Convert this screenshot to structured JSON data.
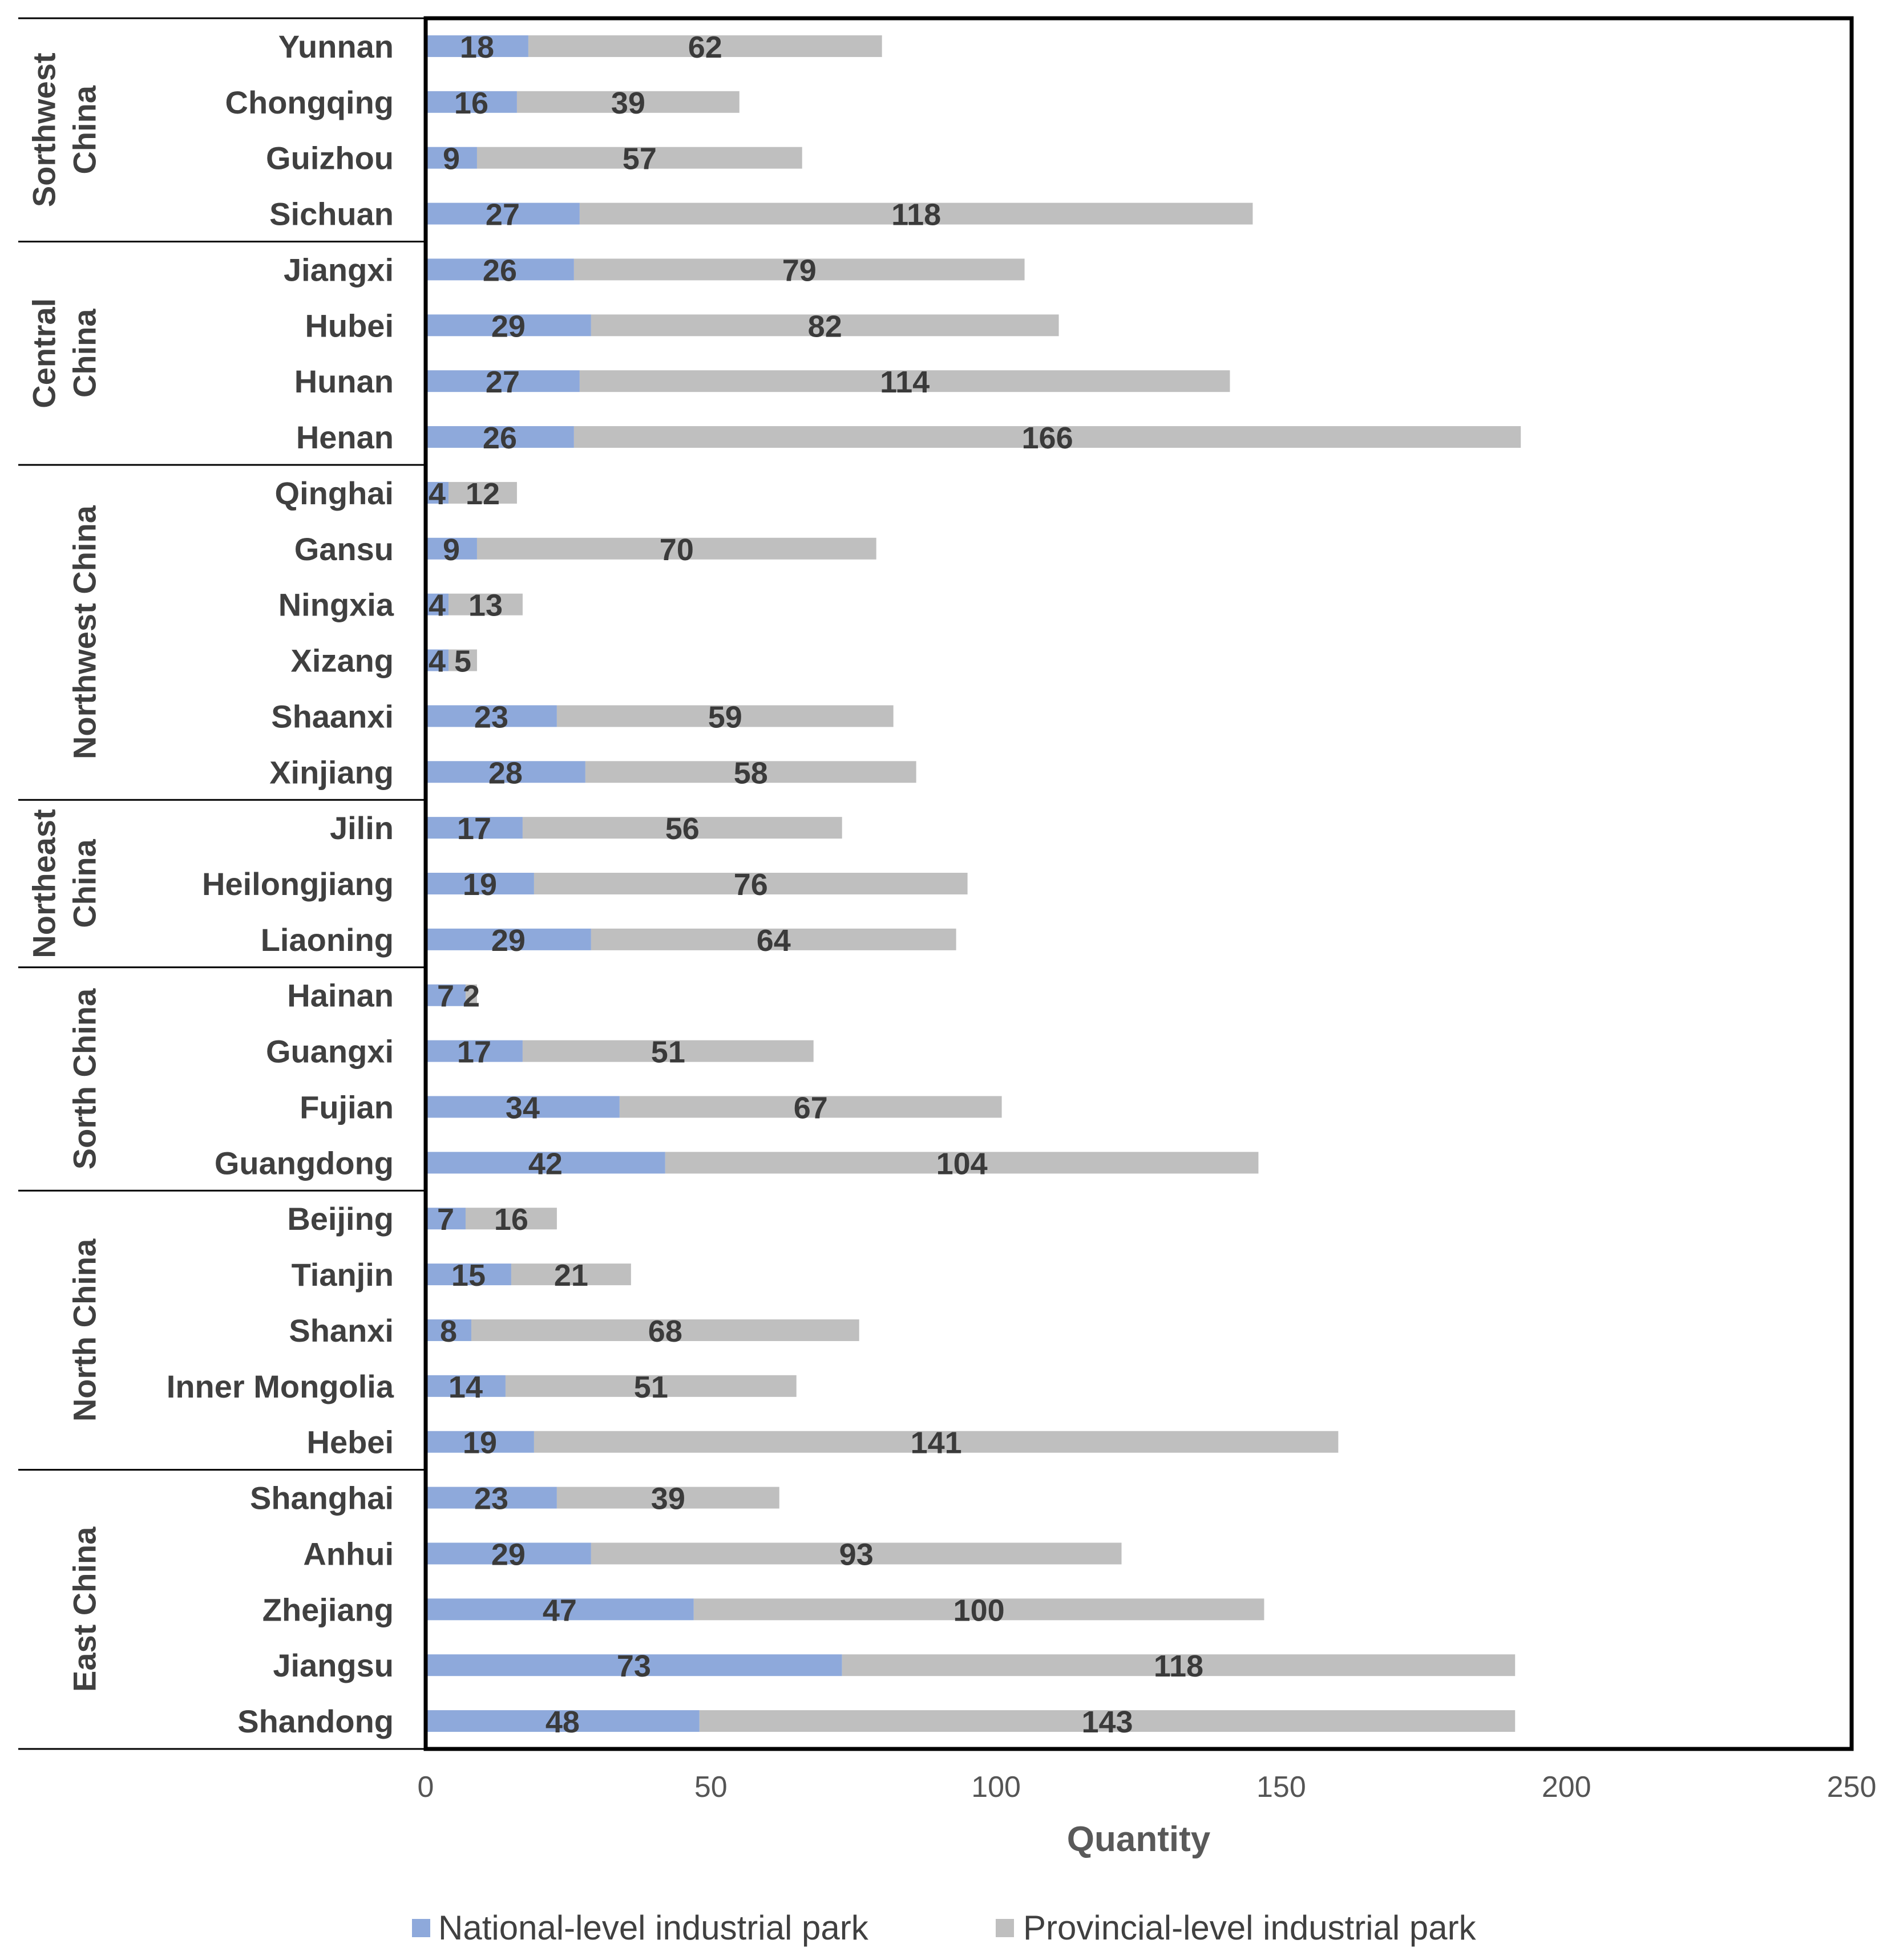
{
  "chart_data": {
    "type": "bar",
    "orientation": "horizontal",
    "stacked": true,
    "xlabel": "Quantity",
    "xlim": [
      0,
      250
    ],
    "xticks": [
      0,
      50,
      100,
      150,
      200,
      250
    ],
    "grid": false,
    "legend_position": "bottom",
    "series": [
      {
        "name": "National-level industrial park",
        "color": "#8EA9DB"
      },
      {
        "name": "Provincial-level industrial park",
        "color": "#BFBFBF"
      }
    ],
    "groups": [
      {
        "region": "Sorthwest China",
        "region_lines": [
          "Sorthwest",
          "China"
        ],
        "rows": [
          {
            "category": "Yunnan",
            "values": [
              18,
              62
            ]
          },
          {
            "category": "Chongqing",
            "values": [
              16,
              39
            ]
          },
          {
            "category": "Guizhou",
            "values": [
              9,
              57
            ]
          },
          {
            "category": "Sichuan",
            "values": [
              27,
              118
            ]
          }
        ]
      },
      {
        "region": "Central China",
        "region_lines": [
          "Central",
          "China"
        ],
        "rows": [
          {
            "category": "Jiangxi",
            "values": [
              26,
              79
            ]
          },
          {
            "category": "Hubei",
            "values": [
              29,
              82
            ]
          },
          {
            "category": "Hunan",
            "values": [
              27,
              114
            ]
          },
          {
            "category": "Henan",
            "values": [
              26,
              166
            ]
          }
        ]
      },
      {
        "region": "Northwest China",
        "region_lines": [
          "Northwest China"
        ],
        "rows": [
          {
            "category": "Qinghai",
            "values": [
              4,
              12
            ]
          },
          {
            "category": "Gansu",
            "values": [
              9,
              70
            ]
          },
          {
            "category": "Ningxia",
            "values": [
              4,
              13
            ]
          },
          {
            "category": "Xizang",
            "values": [
              4,
              5
            ]
          },
          {
            "category": "Shaanxi",
            "values": [
              23,
              59
            ]
          },
          {
            "category": "Xinjiang",
            "values": [
              28,
              58
            ]
          }
        ]
      },
      {
        "region": "Northeast China",
        "region_lines": [
          "Northeast",
          "China"
        ],
        "rows": [
          {
            "category": "Jilin",
            "values": [
              17,
              56
            ]
          },
          {
            "category": "Heilongjiang",
            "values": [
              19,
              76
            ]
          },
          {
            "category": "Liaoning",
            "values": [
              29,
              64
            ]
          }
        ]
      },
      {
        "region": "Sorth China",
        "region_lines": [
          "Sorth China"
        ],
        "rows": [
          {
            "category": "Hainan",
            "values": [
              7,
              2
            ]
          },
          {
            "category": "Guangxi",
            "values": [
              17,
              51
            ]
          },
          {
            "category": "Fujian",
            "values": [
              34,
              67
            ]
          },
          {
            "category": "Guangdong",
            "values": [
              42,
              104
            ]
          }
        ]
      },
      {
        "region": "North China",
        "region_lines": [
          "North China"
        ],
        "rows": [
          {
            "category": "Beijing",
            "values": [
              7,
              16
            ]
          },
          {
            "category": "Tianjin",
            "values": [
              15,
              21
            ]
          },
          {
            "category": "Shanxi",
            "values": [
              8,
              68
            ]
          },
          {
            "category": "Inner Mongolia",
            "values": [
              14,
              51
            ]
          },
          {
            "category": "Hebei",
            "values": [
              19,
              141
            ]
          }
        ]
      },
      {
        "region": "East China",
        "region_lines": [
          "East China"
        ],
        "rows": [
          {
            "category": "Shanghai",
            "values": [
              23,
              39
            ]
          },
          {
            "category": "Anhui",
            "values": [
              29,
              93
            ]
          },
          {
            "category": "Zhejiang",
            "values": [
              47,
              100
            ]
          },
          {
            "category": "Jiangsu",
            "values": [
              73,
              118
            ]
          },
          {
            "category": "Shandong",
            "values": [
              48,
              143
            ]
          }
        ]
      }
    ]
  }
}
